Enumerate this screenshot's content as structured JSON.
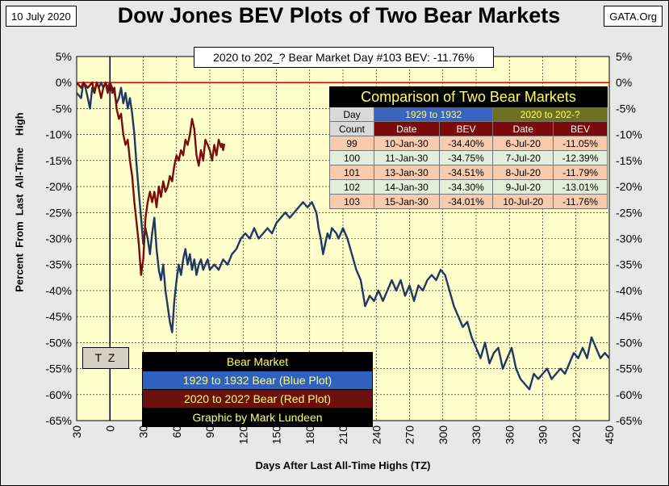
{
  "header": {
    "date": "10 July 2020",
    "source": "GATA.Org"
  },
  "chart_data": {
    "type": "line",
    "title": "Dow Jones BEV Plots of Two Bear Markets",
    "subtitle": "2020 to 202_? Bear Market Day #103 BEV: -11.76%",
    "xlabel": "Days After Last All-Time Highs (TZ)",
    "ylabel": "Percent  From  Last  All-Time    High",
    "xlim": [
      -30,
      450
    ],
    "ylim": [
      -65,
      5
    ],
    "x_ticks": [
      "30",
      "0",
      "30",
      "60",
      "90",
      "120",
      "150",
      "180",
      "210",
      "240",
      "270",
      "300",
      "330",
      "360",
      "390",
      "420",
      "450"
    ],
    "y_ticks_left": [
      "5%",
      "0%",
      "-5%",
      "-10%",
      "-15%",
      "-20%",
      "-25%",
      "-30%",
      "-35%",
      "-40%",
      "-45%",
      "-50%",
      "-55%",
      "-60%",
      "-65%"
    ],
    "y_ticks_right": [
      "5%",
      "0%",
      "-5%",
      "-10%",
      "-15%",
      "-20%",
      "-25%",
      "-30%",
      "-35%",
      "-40%",
      "-45%",
      "-50%",
      "-55%",
      "-60%",
      "-65%"
    ],
    "grid": true,
    "reference_line": {
      "y": 0,
      "color": "#dd0000"
    },
    "tz_marker": {
      "x": 0,
      "label": "T Z"
    },
    "colors": {
      "blue": "#1f3864",
      "red": "#7b0a0a",
      "plot_bg": "#ffffcc"
    },
    "series": [
      {
        "name": "1929 to 1932 Bear (Blue Plot)",
        "color": "#1f3864",
        "points": [
          [
            -30,
            -2
          ],
          [
            -26,
            -3
          ],
          [
            -24,
            0
          ],
          [
            -22,
            -1
          ],
          [
            -20,
            -3
          ],
          [
            -18,
            -5
          ],
          [
            -16,
            -1
          ],
          [
            -14,
            -2
          ],
          [
            -12,
            0
          ],
          [
            -10,
            -1
          ],
          [
            -8,
            0
          ],
          [
            -6,
            -1
          ],
          [
            -4,
            0
          ],
          [
            -2,
            -1
          ],
          [
            0,
            0
          ],
          [
            2,
            -1
          ],
          [
            4,
            -2
          ],
          [
            6,
            -4
          ],
          [
            8,
            -3
          ],
          [
            10,
            -1
          ],
          [
            12,
            -4
          ],
          [
            14,
            -2
          ],
          [
            16,
            -5
          ],
          [
            18,
            -3
          ],
          [
            20,
            -6
          ],
          [
            22,
            -10
          ],
          [
            24,
            -16
          ],
          [
            26,
            -21
          ],
          [
            28,
            -26
          ],
          [
            30,
            -31
          ],
          [
            32,
            -28
          ],
          [
            34,
            -30
          ],
          [
            36,
            -33
          ],
          [
            38,
            -29
          ],
          [
            40,
            -26
          ],
          [
            42,
            -32
          ],
          [
            44,
            -36
          ],
          [
            46,
            -38
          ],
          [
            48,
            -35
          ],
          [
            50,
            -40
          ],
          [
            52,
            -43
          ],
          [
            54,
            -46
          ],
          [
            56,
            -48
          ],
          [
            58,
            -42
          ],
          [
            60,
            -38
          ],
          [
            62,
            -35
          ],
          [
            64,
            -37
          ],
          [
            66,
            -34
          ],
          [
            68,
            -32
          ],
          [
            70,
            -35
          ],
          [
            72,
            -33
          ],
          [
            74,
            -36
          ],
          [
            76,
            -34
          ],
          [
            78,
            -37
          ],
          [
            80,
            -35
          ],
          [
            82,
            -34
          ],
          [
            84,
            -36
          ],
          [
            86,
            -35
          ],
          [
            88,
            -34
          ],
          [
            90,
            -36
          ],
          [
            94,
            -35
          ],
          [
            98,
            -36
          ],
          [
            102,
            -34
          ],
          [
            106,
            -35
          ],
          [
            110,
            -33
          ],
          [
            114,
            -32
          ],
          [
            118,
            -30
          ],
          [
            122,
            -29
          ],
          [
            126,
            -30
          ],
          [
            130,
            -28
          ],
          [
            134,
            -30
          ],
          [
            138,
            -29
          ],
          [
            142,
            -28
          ],
          [
            146,
            -29
          ],
          [
            150,
            -27
          ],
          [
            154,
            -26
          ],
          [
            158,
            -25
          ],
          [
            162,
            -26
          ],
          [
            166,
            -25
          ],
          [
            170,
            -24
          ],
          [
            174,
            -23
          ],
          [
            178,
            -24
          ],
          [
            182,
            -23
          ],
          [
            186,
            -25
          ],
          [
            188,
            -28
          ],
          [
            190,
            -30
          ],
          [
            192,
            -33
          ],
          [
            194,
            -31
          ],
          [
            196,
            -29
          ],
          [
            198,
            -30
          ],
          [
            200,
            -28
          ],
          [
            204,
            -29
          ],
          [
            206,
            -30
          ],
          [
            208,
            -29
          ],
          [
            210,
            -28
          ],
          [
            214,
            -30
          ],
          [
            218,
            -33
          ],
          [
            222,
            -36
          ],
          [
            226,
            -38
          ],
          [
            230,
            -43
          ],
          [
            234,
            -41
          ],
          [
            238,
            -42
          ],
          [
            242,
            -40
          ],
          [
            246,
            -42
          ],
          [
            250,
            -40
          ],
          [
            254,
            -38
          ],
          [
            258,
            -40
          ],
          [
            262,
            -38
          ],
          [
            266,
            -41
          ],
          [
            270,
            -39
          ],
          [
            274,
            -42
          ],
          [
            278,
            -39
          ],
          [
            282,
            -40
          ],
          [
            286,
            -38
          ],
          [
            290,
            -37
          ],
          [
            294,
            -38
          ],
          [
            298,
            -36
          ],
          [
            302,
            -37
          ],
          [
            306,
            -40
          ],
          [
            310,
            -43
          ],
          [
            314,
            -45
          ],
          [
            318,
            -47
          ],
          [
            322,
            -46
          ],
          [
            326,
            -49
          ],
          [
            330,
            -51
          ],
          [
            334,
            -53
          ],
          [
            338,
            -50
          ],
          [
            342,
            -54
          ],
          [
            346,
            -52
          ],
          [
            350,
            -51
          ],
          [
            354,
            -55
          ],
          [
            358,
            -53
          ],
          [
            362,
            -51
          ],
          [
            366,
            -55
          ],
          [
            370,
            -57
          ],
          [
            374,
            -58
          ],
          [
            378,
            -59
          ],
          [
            382,
            -56
          ],
          [
            386,
            -57
          ],
          [
            390,
            -56
          ],
          [
            394,
            -55
          ],
          [
            398,
            -57
          ],
          [
            402,
            -56
          ],
          [
            406,
            -55
          ],
          [
            410,
            -56
          ],
          [
            414,
            -54
          ],
          [
            418,
            -52
          ],
          [
            422,
            -53
          ],
          [
            426,
            -51
          ],
          [
            430,
            -53
          ],
          [
            434,
            -49
          ],
          [
            438,
            -51
          ],
          [
            442,
            -53
          ],
          [
            446,
            -52
          ],
          [
            450,
            -53
          ]
        ]
      },
      {
        "name": "2020 to 202? Bear (Red Plot)",
        "color": "#7b0a0a",
        "points": [
          [
            -30,
            0
          ],
          [
            -26,
            -1
          ],
          [
            -24,
            0
          ],
          [
            -20,
            -1
          ],
          [
            -16,
            0
          ],
          [
            -14,
            -2
          ],
          [
            -12,
            0
          ],
          [
            -10,
            -1
          ],
          [
            -8,
            -3
          ],
          [
            -6,
            -1
          ],
          [
            -4,
            0
          ],
          [
            -2,
            -2
          ],
          [
            0,
            0
          ],
          [
            2,
            -2
          ],
          [
            4,
            -1
          ],
          [
            6,
            -5
          ],
          [
            8,
            -7
          ],
          [
            10,
            -6
          ],
          [
            12,
            -10
          ],
          [
            14,
            -12
          ],
          [
            16,
            -11
          ],
          [
            18,
            -15
          ],
          [
            20,
            -18
          ],
          [
            22,
            -23
          ],
          [
            24,
            -27
          ],
          [
            26,
            -31
          ],
          [
            28,
            -37
          ],
          [
            30,
            -34
          ],
          [
            32,
            -26
          ],
          [
            34,
            -23
          ],
          [
            36,
            -21
          ],
          [
            38,
            -23
          ],
          [
            40,
            -21
          ],
          [
            42,
            -24
          ],
          [
            44,
            -20
          ],
          [
            46,
            -22
          ],
          [
            48,
            -19
          ],
          [
            50,
            -21
          ],
          [
            52,
            -20
          ],
          [
            54,
            -18
          ],
          [
            56,
            -19
          ],
          [
            58,
            -16
          ],
          [
            60,
            -14
          ],
          [
            62,
            -15
          ],
          [
            64,
            -13
          ],
          [
            66,
            -14
          ],
          [
            68,
            -11
          ],
          [
            70,
            -12
          ],
          [
            72,
            -10
          ],
          [
            74,
            -7
          ],
          [
            76,
            -9
          ],
          [
            78,
            -14
          ],
          [
            80,
            -16
          ],
          [
            82,
            -13
          ],
          [
            84,
            -15
          ],
          [
            86,
            -11
          ],
          [
            88,
            -12
          ],
          [
            90,
            -13
          ],
          [
            92,
            -15
          ],
          [
            94,
            -12
          ],
          [
            96,
            -14
          ],
          [
            98,
            -11
          ],
          [
            100,
            -12.4
          ],
          [
            101,
            -11.8
          ],
          [
            102,
            -13
          ],
          [
            103,
            -11.76
          ]
        ]
      }
    ]
  },
  "legend": {
    "header": "Bear Market",
    "blue_label": "1929 to 1932 Bear (Blue Plot)",
    "red_label": "2020 to 202? Bear (Red Plot)",
    "credit": "Graphic by Mark Lundeen"
  },
  "comparison_table": {
    "title": "Comparison of Two Bear Markets",
    "group_1929": "1929 to 1932",
    "group_2020": "2020 to 202-?",
    "col_day": "Day",
    "col_count": "Count",
    "col_date": "Date",
    "col_bev": "BEV",
    "rows": [
      {
        "day": "99",
        "d1929": "10-Jan-30",
        "b1929": "-34.40%",
        "d2020": "6-Jul-20",
        "b2020": "-11.05%"
      },
      {
        "day": "100",
        "d1929": "11-Jan-30",
        "b1929": "-34.75%",
        "d2020": "7-Jul-20",
        "b2020": "-12.39%"
      },
      {
        "day": "101",
        "d1929": "13-Jan-30",
        "b1929": "-34.51%",
        "d2020": "8-Jul-20",
        "b2020": "-11.79%"
      },
      {
        "day": "102",
        "d1929": "14-Jan-30",
        "b1929": "-34.30%",
        "d2020": "9-Jul-20",
        "b2020": "-13.01%"
      },
      {
        "day": "103",
        "d1929": "15-Jan-30",
        "b1929": "-34.01%",
        "d2020": "10-Jul-20",
        "b2020": "-11.76%"
      }
    ]
  }
}
